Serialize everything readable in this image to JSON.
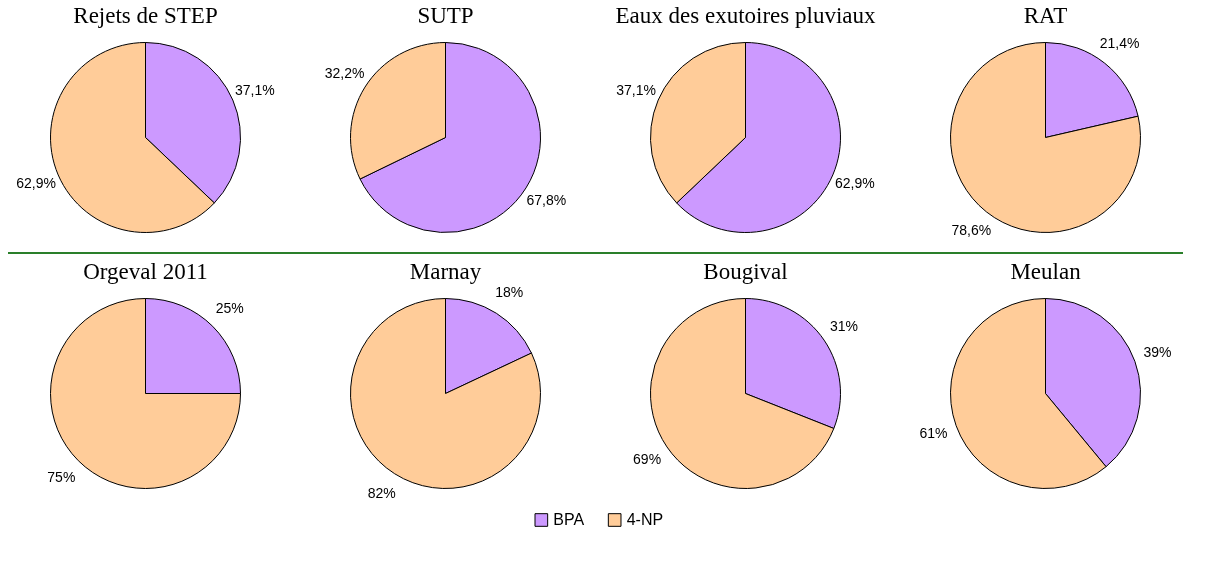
{
  "chart_data": [
    {
      "type": "pie",
      "title": "Rejets de STEP",
      "categories": [
        "BPA",
        "4-NP"
      ],
      "values": [
        37.1,
        62.9
      ],
      "colors": [
        "#cc99ff",
        "#ffcc99"
      ],
      "value_labels": [
        "37,1%",
        "62,9%"
      ],
      "legend": "bottom"
    },
    {
      "type": "pie",
      "title": "SUTP",
      "categories": [
        null,
        null
      ],
      "values": [
        67.8,
        32.2
      ],
      "colors": [
        "#cc99ff",
        "#ffcc99"
      ],
      "value_labels": [
        "67,8%",
        "32,2%"
      ]
    },
    {
      "type": "pie",
      "title": "Eaux des exutoires pluviaux",
      "categories": [
        null,
        null
      ],
      "values": [
        62.9,
        37.1
      ],
      "colors": [
        "#cc99ff",
        "#ffcc99"
      ],
      "value_labels": [
        "62,9%",
        "37,1%"
      ]
    },
    {
      "type": "pie",
      "title": "RAT",
      "categories": [
        null,
        null
      ],
      "values": [
        21.4,
        78.6
      ],
      "colors": [
        "#cc99ff",
        "#ffcc99"
      ],
      "value_labels": [
        "21,4%",
        "78,6%"
      ]
    },
    {
      "type": "pie",
      "title": "Orgeval 2011",
      "categories": [
        null,
        null
      ],
      "values": [
        25,
        75
      ],
      "colors": [
        "#cc99ff",
        "#ffcc99"
      ],
      "value_labels": [
        "25%",
        "75%"
      ]
    },
    {
      "type": "pie",
      "title": "Marnay",
      "categories": [
        null,
        null
      ],
      "values": [
        18,
        82
      ],
      "colors": [
        "#cc99ff",
        "#ffcc99"
      ],
      "value_labels": [
        "18%",
        "82%"
      ]
    },
    {
      "type": "pie",
      "title": "Bougival",
      "categories": [
        null,
        null
      ],
      "values": [
        31,
        69
      ],
      "colors": [
        "#cc99ff",
        "#ffcc99"
      ],
      "value_labels": [
        "31%",
        "69%"
      ]
    },
    {
      "type": "pie",
      "title": "Meulan",
      "categories": [
        null,
        null
      ],
      "values": [
        39,
        61
      ],
      "colors": [
        "#cc99ff",
        "#ffcc99"
      ],
      "value_labels": [
        "39%",
        "61%"
      ]
    }
  ]
}
